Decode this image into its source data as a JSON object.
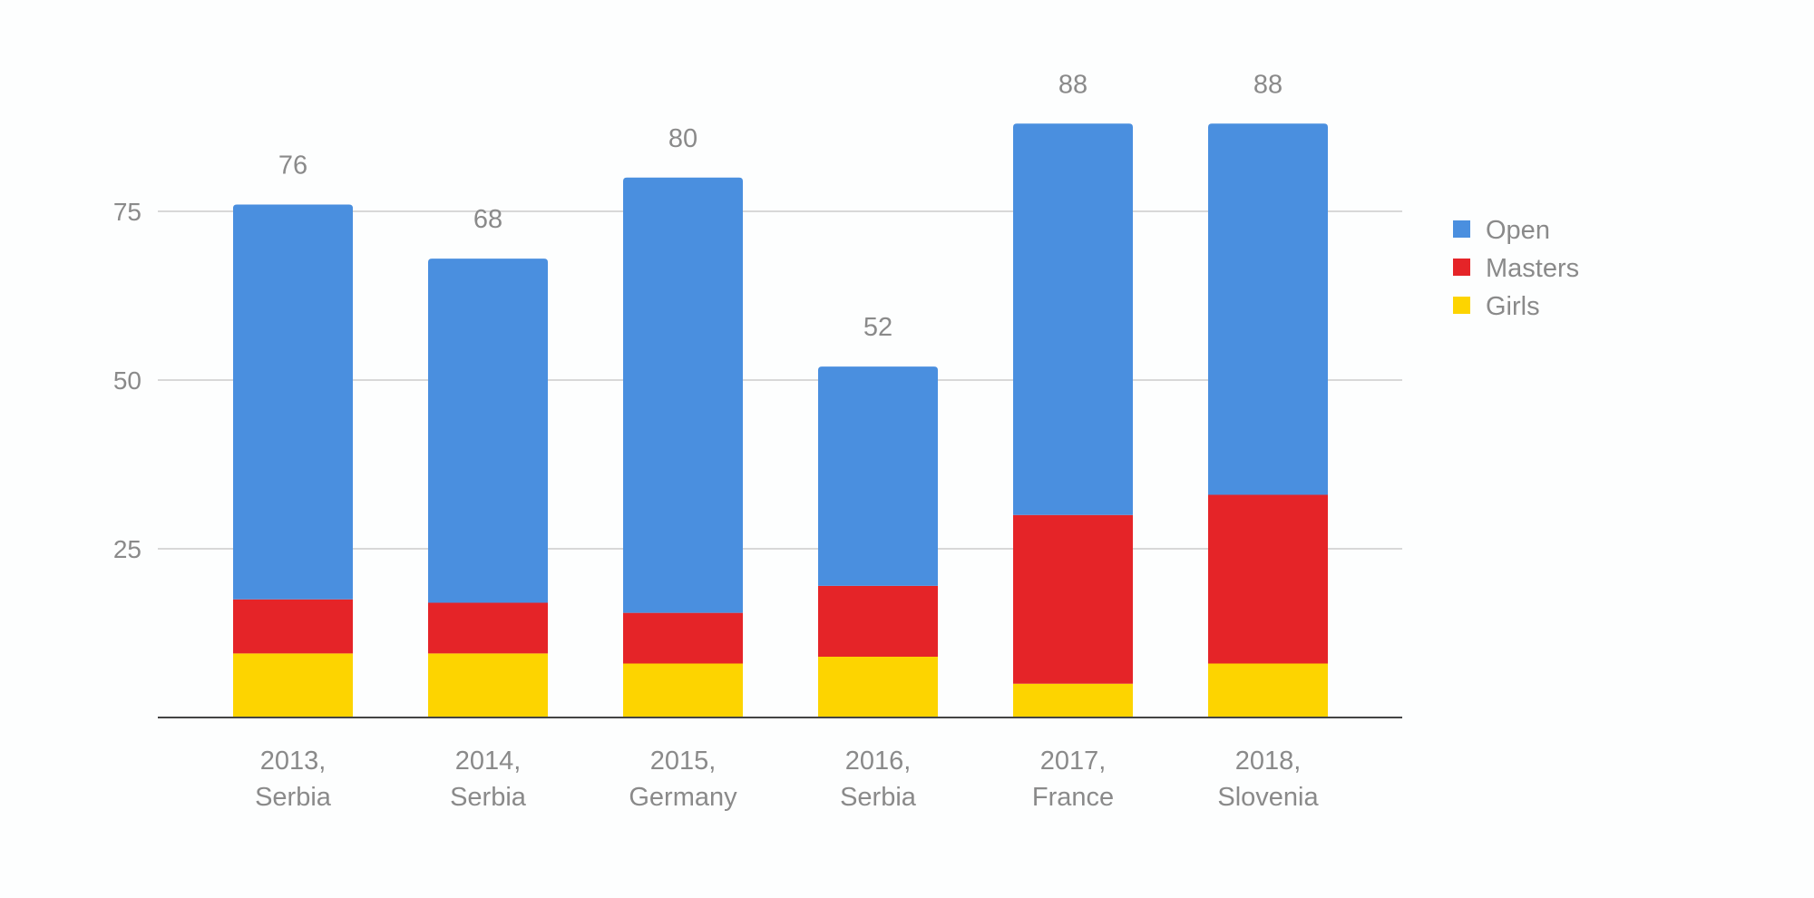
{
  "chart_data": {
    "type": "bar",
    "stacked": true,
    "categories": [
      [
        "2013,",
        "Serbia"
      ],
      [
        "2014,",
        "Serbia"
      ],
      [
        "2015,",
        "Germany"
      ],
      [
        "2016,",
        "Serbia"
      ],
      [
        "2017,",
        "France"
      ],
      [
        "2018,",
        "Slovenia"
      ]
    ],
    "series": [
      {
        "name": "Girls",
        "color": "#fdd400",
        "values": [
          9.5,
          9.5,
          8,
          9,
          5,
          8
        ]
      },
      {
        "name": "Masters",
        "color": "#e52428",
        "values": [
          8,
          7.5,
          7.5,
          10.5,
          25,
          25
        ]
      },
      {
        "name": "Open",
        "color": "#4a8fdf",
        "values": [
          58.5,
          51,
          64.5,
          32.5,
          58,
          55
        ]
      }
    ],
    "totals": [
      76,
      68,
      80,
      52,
      88,
      88
    ],
    "legend_order": [
      "Open",
      "Masters",
      "Girls"
    ],
    "legend_position": "right",
    "y_ticks": [
      25,
      50,
      75
    ],
    "ylim": [
      0,
      88
    ],
    "grid": true,
    "title": "",
    "xlabel": "",
    "ylabel": ""
  }
}
